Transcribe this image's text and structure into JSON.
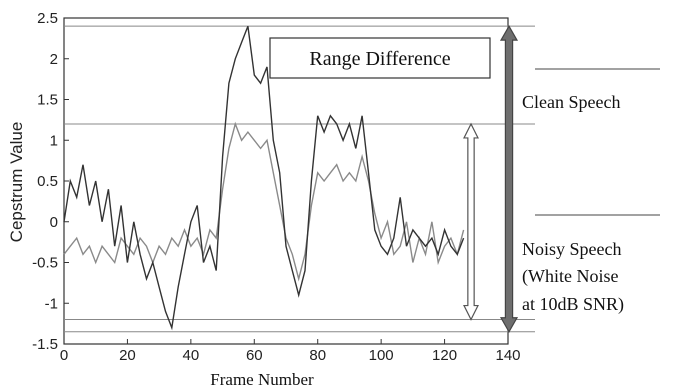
{
  "chart_data": {
    "type": "line",
    "title": "",
    "xlabel": "Frame Number",
    "ylabel": "Cepstrum Value",
    "xlim": [
      0,
      140
    ],
    "ylim": [
      -1.5,
      2.5
    ],
    "xticks": [
      "0",
      "20",
      "40",
      "60",
      "80",
      "100",
      "120",
      "140"
    ],
    "yticks": [
      "-1.5",
      "-1",
      "-0.5",
      "0",
      "0.5",
      "1",
      "1.5",
      "2",
      "2.5"
    ],
    "grid": false,
    "series": [
      {
        "name": "Clean Speech",
        "color": "#333333",
        "x": [
          0,
          2,
          4,
          6,
          8,
          10,
          12,
          14,
          16,
          18,
          20,
          22,
          24,
          26,
          28,
          30,
          32,
          34,
          36,
          38,
          40,
          42,
          44,
          46,
          48,
          50,
          52,
          54,
          56,
          58,
          60,
          62,
          64,
          66,
          68,
          70,
          72,
          74,
          76,
          78,
          80,
          82,
          84,
          86,
          88,
          90,
          92,
          94,
          96,
          98,
          100,
          102,
          104,
          106,
          108,
          110,
          112,
          114,
          116,
          118,
          120,
          122,
          124,
          126
        ],
        "y": [
          0.0,
          0.5,
          0.3,
          0.7,
          0.2,
          0.5,
          0.0,
          0.4,
          -0.3,
          0.2,
          -0.5,
          0.0,
          -0.4,
          -0.7,
          -0.5,
          -0.8,
          -1.1,
          -1.3,
          -0.8,
          -0.4,
          0.0,
          0.2,
          -0.5,
          -0.3,
          -0.6,
          0.8,
          1.7,
          2.0,
          2.2,
          2.4,
          1.8,
          1.7,
          1.9,
          1.0,
          0.6,
          -0.3,
          -0.6,
          -0.9,
          -0.6,
          0.5,
          1.3,
          1.1,
          1.3,
          1.2,
          1.0,
          1.2,
          0.9,
          1.3,
          0.6,
          -0.1,
          -0.3,
          -0.4,
          -0.2,
          0.3,
          -0.3,
          -0.1,
          -0.2,
          -0.3,
          -0.2,
          -0.4,
          -0.1,
          -0.3,
          -0.4,
          -0.2
        ]
      },
      {
        "name": "Noisy Speech",
        "color": "#8a8a8a",
        "x": [
          0,
          2,
          4,
          6,
          8,
          10,
          12,
          14,
          16,
          18,
          20,
          22,
          24,
          26,
          28,
          30,
          32,
          34,
          36,
          38,
          40,
          42,
          44,
          46,
          48,
          50,
          52,
          54,
          56,
          58,
          60,
          62,
          64,
          66,
          68,
          70,
          72,
          74,
          76,
          78,
          80,
          82,
          84,
          86,
          88,
          90,
          92,
          94,
          96,
          98,
          100,
          102,
          104,
          106,
          108,
          110,
          112,
          114,
          116,
          118,
          120,
          122,
          124,
          126
        ],
        "y": [
          -0.4,
          -0.3,
          -0.2,
          -0.4,
          -0.3,
          -0.5,
          -0.3,
          -0.4,
          -0.5,
          -0.2,
          -0.3,
          -0.4,
          -0.2,
          -0.3,
          -0.5,
          -0.3,
          -0.4,
          -0.2,
          -0.3,
          -0.1,
          -0.3,
          -0.2,
          -0.4,
          -0.1,
          -0.2,
          0.4,
          0.9,
          1.2,
          1.0,
          1.1,
          1.0,
          0.9,
          1.0,
          0.6,
          0.2,
          -0.2,
          -0.4,
          -0.7,
          -0.4,
          0.2,
          0.6,
          0.5,
          0.6,
          0.7,
          0.5,
          0.6,
          0.5,
          0.8,
          0.5,
          0.1,
          -0.2,
          0.0,
          -0.4,
          -0.3,
          0.0,
          -0.5,
          -0.2,
          -0.4,
          0.0,
          -0.5,
          -0.3,
          -0.2,
          -0.4,
          -0.1
        ]
      }
    ],
    "reference_lines": [
      2.4,
      1.2,
      -1.2,
      -1.35
    ],
    "annotations": {
      "range_box": "Range Difference",
      "clean_label": "Clean Speech",
      "noisy_label_1": "Noisy Speech",
      "noisy_label_2": "(White Noise",
      "noisy_label_3": "at 10dB SNR)"
    }
  }
}
